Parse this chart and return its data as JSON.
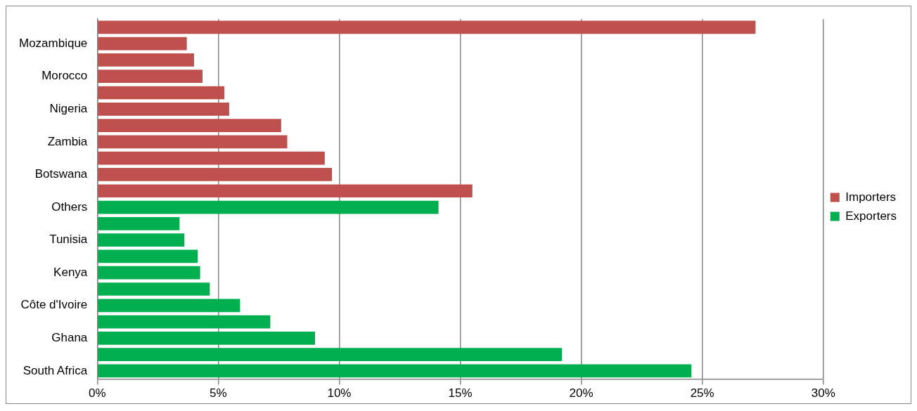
{
  "chart_data": {
    "type": "bar",
    "orientation": "horizontal",
    "categories": [
      null,
      "Mozambique",
      null,
      "Morocco",
      null,
      "Nigeria",
      null,
      "Zambia",
      null,
      "Botswana",
      null,
      "Others",
      null,
      "Tunisia",
      null,
      "Kenya",
      null,
      "Côte d'Ivoire",
      null,
      "Ghana",
      null,
      "South Africa"
    ],
    "series": [
      {
        "name": "Importers",
        "color": "#c0504d",
        "values": [
          27.2,
          3.7,
          4.0,
          4.35,
          5.25,
          5.45,
          7.6,
          7.85,
          9.4,
          9.7,
          15.5,
          null,
          null,
          null,
          null,
          null,
          null,
          null,
          null,
          null,
          null,
          null
        ]
      },
      {
        "name": "Exporters",
        "color": "#00b050",
        "values": [
          null,
          null,
          null,
          null,
          null,
          null,
          null,
          null,
          null,
          null,
          null,
          14.1,
          3.4,
          3.6,
          4.15,
          4.25,
          4.65,
          5.9,
          7.15,
          9.0,
          19.2,
          24.55
        ]
      }
    ],
    "xlim": [
      0,
      30
    ],
    "xticks": [
      {
        "value": 0,
        "label": "0%"
      },
      {
        "value": 5,
        "label": "5%"
      },
      {
        "value": 10,
        "label": "10%"
      },
      {
        "value": 15,
        "label": "15%"
      },
      {
        "value": 20,
        "label": "20%"
      },
      {
        "value": 25,
        "label": "25%"
      },
      {
        "value": 30,
        "label": "30%"
      }
    ],
    "grid": "x",
    "legend": "right"
  }
}
